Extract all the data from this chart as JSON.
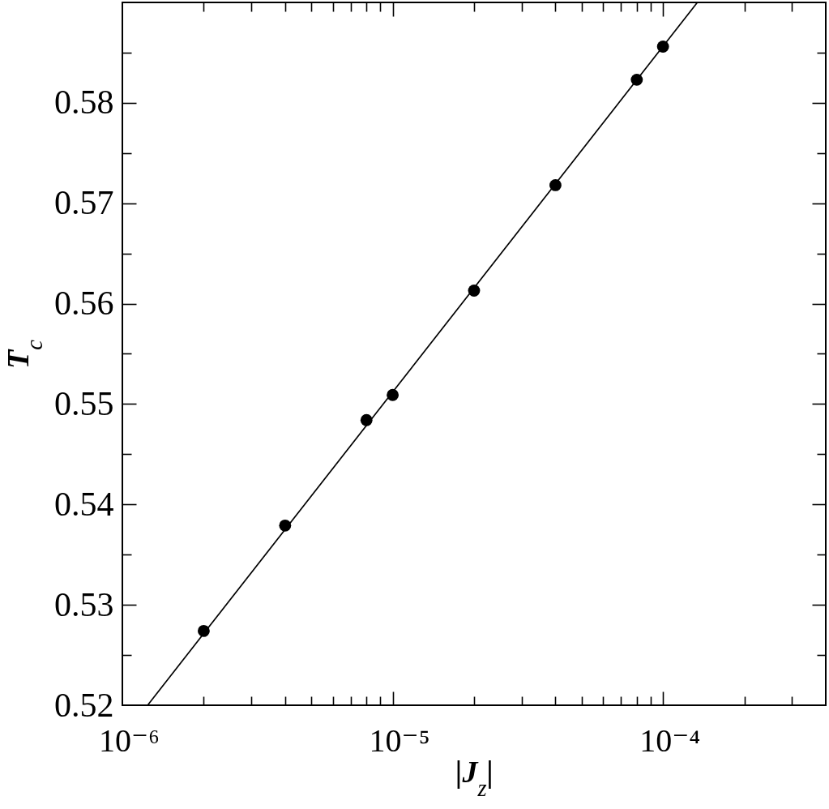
{
  "chart_data": {
    "type": "scatter",
    "xlabel": "|J$_{z}$|",
    "ylabel": "T$_{c}$",
    "log": "x",
    "grid": false,
    "marker": "circle",
    "xlim": [
      1e-06,
      0.0004
    ],
    "ylim": [
      0.52,
      0.59
    ],
    "xticks": [
      {
        "value": 1e-06,
        "label": "10⁻⁶"
      },
      {
        "value": 2e-06,
        "label": null
      },
      {
        "value": 3e-06,
        "label": null
      },
      {
        "value": 4e-06,
        "label": null
      },
      {
        "value": 5e-06,
        "label": null
      },
      {
        "value": 6e-06,
        "label": null
      },
      {
        "value": 7e-06,
        "label": null
      },
      {
        "value": 8e-06,
        "label": null
      },
      {
        "value": 9e-06,
        "label": null
      },
      {
        "value": 1e-05,
        "label": "10⁻⁵"
      },
      {
        "value": 2e-05,
        "label": null
      },
      {
        "value": 3e-05,
        "label": null
      },
      {
        "value": 4e-05,
        "label": null
      },
      {
        "value": 5e-05,
        "label": null
      },
      {
        "value": 6e-05,
        "label": null
      },
      {
        "value": 7e-05,
        "label": null
      },
      {
        "value": 8e-05,
        "label": null
      },
      {
        "value": 9e-05,
        "label": null
      },
      {
        "value": 0.0001,
        "label": "10⁻⁴"
      },
      {
        "value": 0.0002,
        "label": null
      },
      {
        "value": 0.0003,
        "label": null
      }
    ],
    "yticks": [
      0.52,
      {
        "value": 0.525,
        "label": null
      },
      0.53,
      {
        "value": 0.535,
        "label": null
      },
      0.54,
      {
        "value": 0.545,
        "label": null
      },
      0.55,
      {
        "value": 0.555,
        "label": null
      },
      0.56,
      {
        "value": 0.565,
        "label": null
      },
      0.57,
      {
        "value": 0.575,
        "label": null
      },
      0.58,
      {
        "value": 0.585,
        "label": null
      }
    ],
    "series": [
      {
        "type": "line",
        "color": "#000000",
        "marker": "none",
        "x": [
          1.24e-06,
          0.000134
        ],
        "values": [
          0.52,
          0.59
        ]
      },
      {
        "type": "scatter",
        "color": "#000000",
        "x": [
          2e-06,
          4e-06,
          8e-06,
          1e-05,
          2e-05,
          4e-05,
          8e-05,
          0.0001
        ],
        "values": [
          0.5274,
          0.5379,
          0.5484,
          0.5509,
          0.5613,
          0.5718,
          0.5823,
          0.5856
        ]
      }
    ]
  }
}
